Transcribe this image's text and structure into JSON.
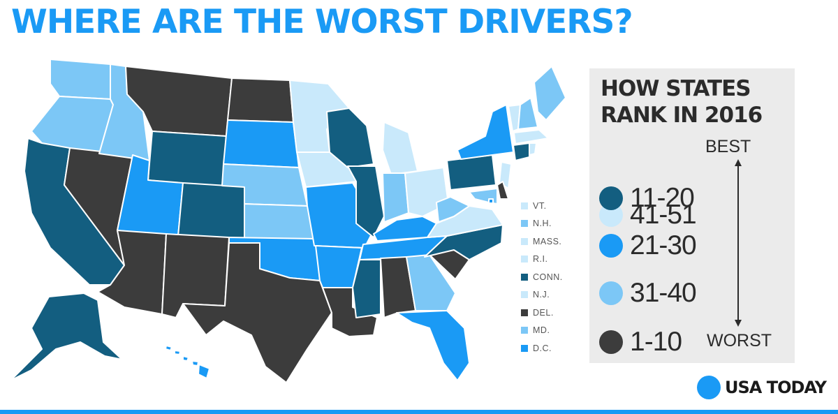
{
  "title": "WHERE ARE THE WORST DRIVERS?",
  "colors": {
    "rank_41_51": "#c9e9fb",
    "rank_31_40": "#7cc7f6",
    "rank_21_30": "#1a9af5",
    "rank_11_20": "#135e80",
    "rank_1_10": "#3c3c3c",
    "accent": "#1a9af5"
  },
  "legend": {
    "title": "HOW STATES RANK IN 2016",
    "items": [
      {
        "label": "41-51",
        "tier": "rank_41_51"
      },
      {
        "label": "11-20",
        "tier": "rank_11_20"
      },
      {
        "label": "21-30",
        "tier": "rank_21_30"
      },
      {
        "label": "31-40",
        "tier": "rank_31_40"
      },
      {
        "label": "1-10",
        "tier": "rank_1_10"
      }
    ],
    "best_label": "BEST",
    "worst_label": "WORST"
  },
  "small_states": [
    {
      "label": "VT.",
      "tier": "rank_41_51"
    },
    {
      "label": "N.H.",
      "tier": "rank_31_40"
    },
    {
      "label": "MASS.",
      "tier": "rank_41_51"
    },
    {
      "label": "R.I.",
      "tier": "rank_41_51"
    },
    {
      "label": "CONN.",
      "tier": "rank_11_20"
    },
    {
      "label": "N.J.",
      "tier": "rank_41_51"
    },
    {
      "label": "DEL.",
      "tier": "rank_1_10"
    },
    {
      "label": "MD.",
      "tier": "rank_31_40"
    },
    {
      "label": "D.C.",
      "tier": "rank_21_30"
    }
  ],
  "states": {
    "WA": "rank_31_40",
    "OR": "rank_31_40",
    "CA": "rank_11_20",
    "NV": "rank_1_10",
    "ID": "rank_31_40",
    "MT": "rank_1_10",
    "WY": "rank_11_20",
    "UT": "rank_21_30",
    "AZ": "rank_1_10",
    "CO": "rank_11_20",
    "NM": "rank_1_10",
    "ND": "rank_1_10",
    "SD": "rank_21_30",
    "NE": "rank_31_40",
    "KS": "rank_31_40",
    "OK": "rank_21_30",
    "TX": "rank_1_10",
    "MN": "rank_41_51",
    "IA": "rank_41_51",
    "MO": "rank_21_30",
    "AR": "rank_21_30",
    "LA": "rank_1_10",
    "WI": "rank_11_20",
    "IL": "rank_11_20",
    "MI": "rank_41_51",
    "IN": "rank_31_40",
    "OH": "rank_41_51",
    "KY": "rank_21_30",
    "TN": "rank_21_30",
    "MS": "rank_11_20",
    "AL": "rank_1_10",
    "GA": "rank_31_40",
    "FL": "rank_21_30",
    "SC": "rank_1_10",
    "NC": "rank_11_20",
    "VA": "rank_41_51",
    "WV": "rank_31_40",
    "PA": "rank_11_20",
    "NY": "rank_21_30",
    "ME": "rank_31_40",
    "VT": "rank_41_51",
    "NH": "rank_31_40",
    "MA": "rank_41_51",
    "CT": "rank_11_20",
    "RI": "rank_41_51",
    "NJ": "rank_41_51",
    "DE": "rank_1_10",
    "MD": "rank_31_40",
    "AK": "rank_11_20",
    "HI": "rank_21_30"
  },
  "brand": "USA TODAY"
}
